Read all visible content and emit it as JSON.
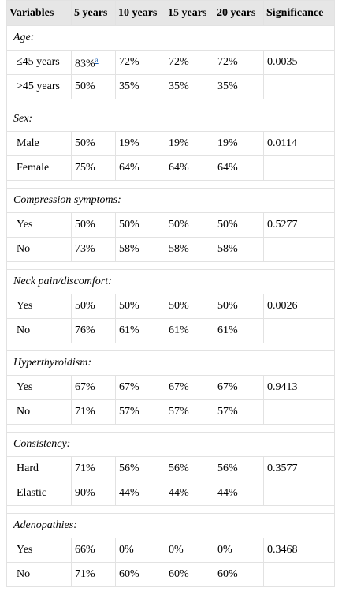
{
  "table": {
    "header": [
      "Variables",
      "5 years",
      "10 years",
      "15 years",
      "20 years",
      "Significance"
    ],
    "groups": [
      {
        "title": "Age:",
        "rows": [
          [
            {
              "text": "≤45 years"
            },
            {
              "text": "83%",
              "sup": "a"
            },
            {
              "text": "72%"
            },
            {
              "text": "72%"
            },
            {
              "text": "72%"
            },
            {
              "text": "0.0035"
            }
          ],
          [
            {
              "text": ">45 years"
            },
            {
              "text": "50%"
            },
            {
              "text": "35%"
            },
            {
              "text": "35%"
            },
            {
              "text": "35%"
            }
          ]
        ]
      },
      {
        "title": "Sex:",
        "rows": [
          [
            {
              "text": "Male"
            },
            {
              "text": "50%"
            },
            {
              "text": "19%"
            },
            {
              "text": "19%"
            },
            {
              "text": "19%"
            },
            {
              "text": "0.0114"
            }
          ],
          [
            {
              "text": "Female"
            },
            {
              "text": "75%"
            },
            {
              "text": "64%"
            },
            {
              "text": "64%"
            },
            {
              "text": "64%"
            }
          ]
        ]
      },
      {
        "title": "Compression symptoms:",
        "rows": [
          [
            {
              "text": "Yes"
            },
            {
              "text": "50%"
            },
            {
              "text": "50%"
            },
            {
              "text": "50%"
            },
            {
              "text": "50%"
            },
            {
              "text": "0.5277"
            }
          ],
          [
            {
              "text": "No"
            },
            {
              "text": "73%"
            },
            {
              "text": "58%"
            },
            {
              "text": "58%"
            },
            {
              "text": "58%"
            }
          ]
        ]
      },
      {
        "title": "Neck pain/discomfort:",
        "rows": [
          [
            {
              "text": "Yes"
            },
            {
              "text": "50%"
            },
            {
              "text": "50%"
            },
            {
              "text": "50%"
            },
            {
              "text": "50%"
            },
            {
              "text": "0.0026"
            }
          ],
          [
            {
              "text": "No"
            },
            {
              "text": "76%"
            },
            {
              "text": "61%"
            },
            {
              "text": "61%"
            },
            {
              "text": "61%"
            }
          ]
        ]
      },
      {
        "title": "Hyperthyroidism:",
        "rows": [
          [
            {
              "text": "Yes"
            },
            {
              "text": "67%"
            },
            {
              "text": "67%"
            },
            {
              "text": "67%"
            },
            {
              "text": "67%"
            },
            {
              "text": "0.9413"
            }
          ],
          [
            {
              "text": "No"
            },
            {
              "text": "71%"
            },
            {
              "text": "57%"
            },
            {
              "text": "57%"
            },
            {
              "text": "57%"
            }
          ]
        ]
      },
      {
        "title": "Consistency:",
        "rows": [
          [
            {
              "text": "Hard"
            },
            {
              "text": "71%"
            },
            {
              "text": "56%"
            },
            {
              "text": "56%"
            },
            {
              "text": "56%"
            },
            {
              "text": "0.3577"
            }
          ],
          [
            {
              "text": "Elastic"
            },
            {
              "text": "90%"
            },
            {
              "text": "44%"
            },
            {
              "text": "44%"
            },
            {
              "text": "44%"
            }
          ]
        ]
      },
      {
        "title": "Adenopathies:",
        "rows": [
          [
            {
              "text": "Yes"
            },
            {
              "text": "66%"
            },
            {
              "text": "0%"
            },
            {
              "text": "0%"
            },
            {
              "text": "0%"
            },
            {
              "text": "0.3468"
            }
          ],
          [
            {
              "text": "No"
            },
            {
              "text": "71%"
            },
            {
              "text": "60%"
            },
            {
              "text": "60%"
            },
            {
              "text": "60%"
            }
          ]
        ]
      }
    ]
  }
}
